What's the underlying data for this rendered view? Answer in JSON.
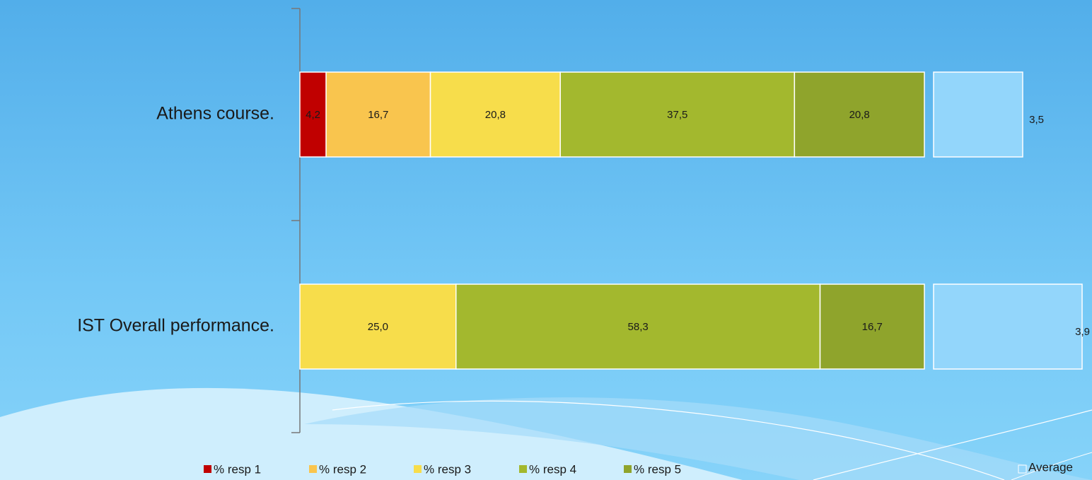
{
  "chart_data": {
    "type": "stacked-bar-horizontal",
    "categories": [
      "Athens course.",
      "IST Overall performance."
    ],
    "xlim": [
      0,
      100
    ],
    "x2lim": [
      2.9,
      3.9
    ],
    "series": [
      {
        "name": "% resp 1",
        "color": "#c00000",
        "values": [
          4.2,
          null
        ],
        "value_labels": [
          "4,2",
          null
        ]
      },
      {
        "name": "% resp 2",
        "color": "#f9c54e",
        "values": [
          16.7,
          null
        ],
        "value_labels": [
          "16,7",
          null
        ]
      },
      {
        "name": "% resp 3",
        "color": "#f7dd4b",
        "values": [
          20.8,
          25.0
        ],
        "value_labels": [
          "20,8",
          "25,0"
        ]
      },
      {
        "name": "% resp 4",
        "color": "#a3b82e",
        "values": [
          37.5,
          58.3
        ],
        "value_labels": [
          "37,5",
          "58,3"
        ]
      },
      {
        "name": "% resp 5",
        "color": "#8fa42c",
        "values": [
          20.8,
          16.7
        ],
        "value_labels": [
          "20,8",
          "16,7"
        ]
      },
      {
        "name": "Average",
        "color": "#93d6fb",
        "axis": "x2",
        "values": [
          3.5,
          3.9
        ],
        "value_labels": [
          "3,5",
          "3,9"
        ]
      }
    ]
  }
}
